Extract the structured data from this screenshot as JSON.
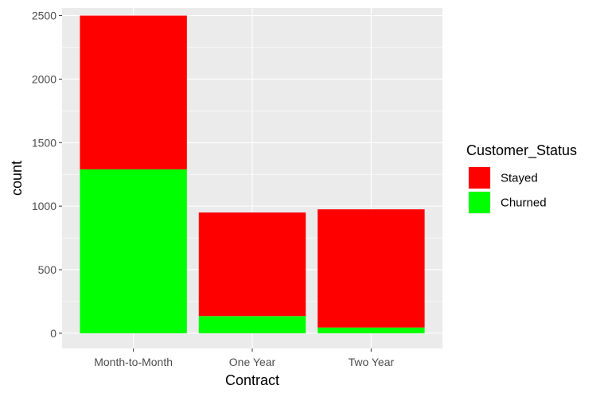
{
  "chart_data": {
    "type": "bar",
    "stacked": true,
    "xlabel": "Contract",
    "ylabel": "count",
    "categories": [
      "Month-to-Month",
      "One Year",
      "Two Year"
    ],
    "ylim": [
      -120,
      2560
    ],
    "yticks": [
      0,
      500,
      1000,
      1500,
      2000,
      2500
    ],
    "grid": true,
    "legend_position": "right",
    "legend_title": "Customer_Status",
    "series": [
      {
        "name": "Stayed",
        "color": "#ff0000",
        "values": [
          1210,
          815,
          930
        ]
      },
      {
        "name": "Churned",
        "color": "#00ff00",
        "values": [
          1290,
          135,
          45
        ]
      }
    ],
    "panel_background": "#ebebeb",
    "grid_color": "#ffffff"
  }
}
